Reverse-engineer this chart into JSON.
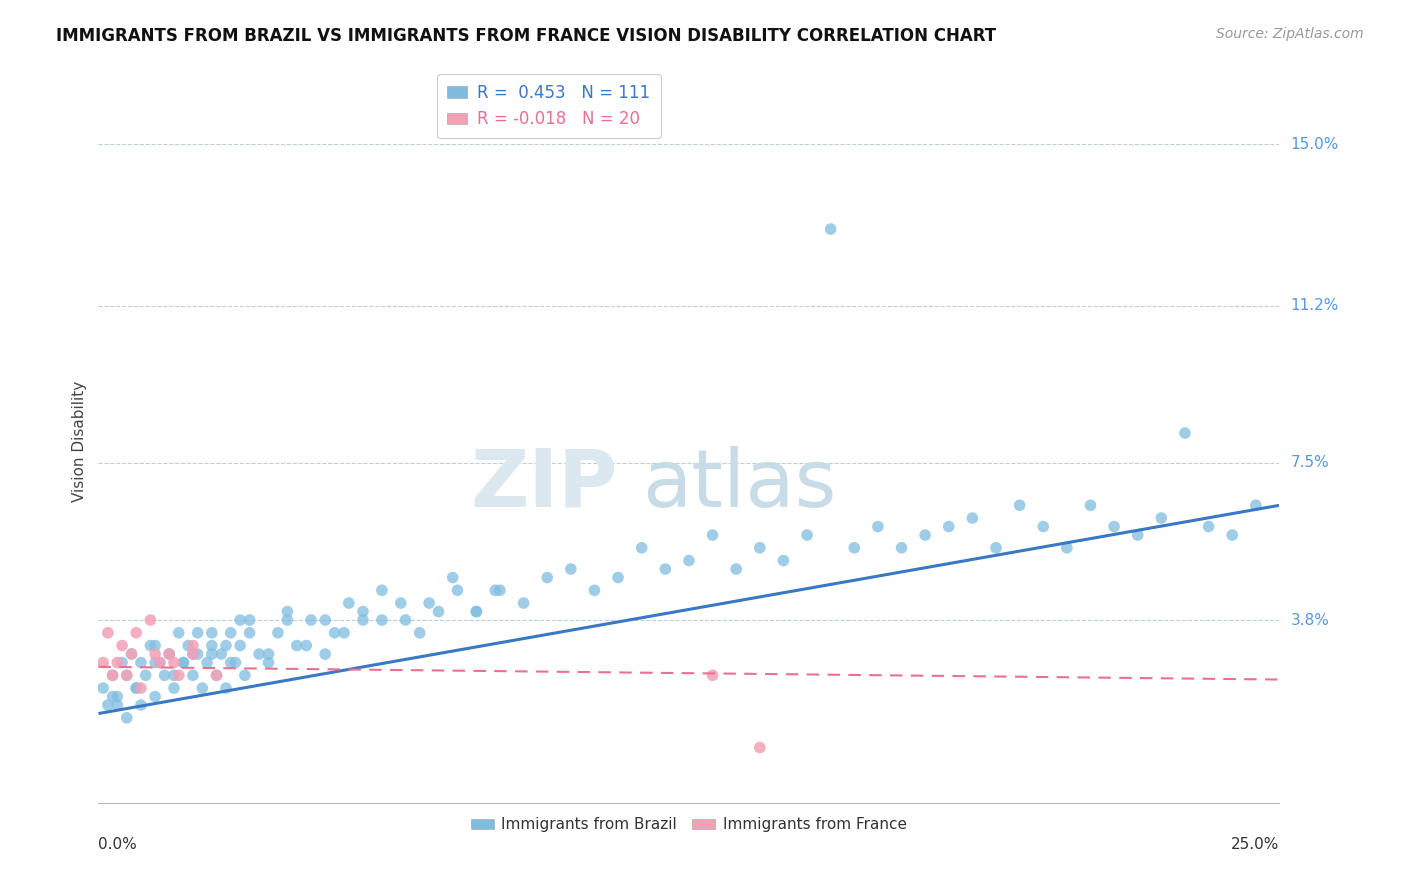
{
  "title": "IMMIGRANTS FROM BRAZIL VS IMMIGRANTS FROM FRANCE VISION DISABILITY CORRELATION CHART",
  "source": "Source: ZipAtlas.com",
  "ylabel": "Vision Disability",
  "xlim": [
    0.0,
    0.25
  ],
  "ylim": [
    -0.005,
    0.165
  ],
  "yticks": [
    0.038,
    0.075,
    0.112,
    0.15
  ],
  "ytick_labels": [
    "3.8%",
    "7.5%",
    "11.2%",
    "15.0%"
  ],
  "brazil_color": "#7fbde0",
  "france_color": "#f4a0b5",
  "brazil_line_color": "#3b78c3",
  "france_line_color": "#e87090",
  "brazil_r": 0.453,
  "brazil_n": 111,
  "france_r": -0.018,
  "france_n": 20,
  "watermark_zip": "ZIP",
  "watermark_atlas": "atlas",
  "brazil_line_x": [
    0.0,
    0.25
  ],
  "brazil_line_y": [
    0.016,
    0.065
  ],
  "france_line_x": [
    0.0,
    0.25
  ],
  "france_line_y": [
    0.027,
    0.024
  ],
  "brazil_scatter_x": [
    0.001,
    0.002,
    0.003,
    0.004,
    0.005,
    0.006,
    0.007,
    0.008,
    0.009,
    0.01,
    0.011,
    0.012,
    0.013,
    0.014,
    0.015,
    0.016,
    0.017,
    0.018,
    0.019,
    0.02,
    0.021,
    0.022,
    0.023,
    0.024,
    0.025,
    0.026,
    0.027,
    0.028,
    0.029,
    0.03,
    0.031,
    0.032,
    0.034,
    0.036,
    0.038,
    0.04,
    0.042,
    0.045,
    0.048,
    0.05,
    0.053,
    0.056,
    0.06,
    0.065,
    0.07,
    0.075,
    0.08,
    0.085,
    0.09,
    0.095,
    0.1,
    0.105,
    0.11,
    0.115,
    0.12,
    0.125,
    0.13,
    0.135,
    0.14,
    0.145,
    0.15,
    0.155,
    0.16,
    0.165,
    0.17,
    0.175,
    0.18,
    0.185,
    0.19,
    0.195,
    0.2,
    0.205,
    0.21,
    0.215,
    0.22,
    0.225,
    0.23,
    0.235,
    0.24,
    0.245,
    0.003,
    0.006,
    0.009,
    0.012,
    0.015,
    0.018,
    0.021,
    0.024,
    0.027,
    0.03,
    0.004,
    0.008,
    0.012,
    0.016,
    0.02,
    0.024,
    0.028,
    0.032,
    0.036,
    0.04,
    0.044,
    0.048,
    0.052,
    0.056,
    0.06,
    0.064,
    0.068,
    0.072,
    0.076,
    0.08,
    0.084
  ],
  "brazil_scatter_y": [
    0.022,
    0.018,
    0.025,
    0.02,
    0.028,
    0.015,
    0.03,
    0.022,
    0.018,
    0.025,
    0.032,
    0.02,
    0.028,
    0.025,
    0.03,
    0.022,
    0.035,
    0.028,
    0.032,
    0.025,
    0.03,
    0.022,
    0.028,
    0.035,
    0.025,
    0.03,
    0.022,
    0.035,
    0.028,
    0.032,
    0.025,
    0.038,
    0.03,
    0.028,
    0.035,
    0.04,
    0.032,
    0.038,
    0.03,
    0.035,
    0.042,
    0.038,
    0.045,
    0.038,
    0.042,
    0.048,
    0.04,
    0.045,
    0.042,
    0.048,
    0.05,
    0.045,
    0.048,
    0.055,
    0.05,
    0.052,
    0.058,
    0.05,
    0.055,
    0.052,
    0.058,
    0.13,
    0.055,
    0.06,
    0.055,
    0.058,
    0.06,
    0.062,
    0.055,
    0.065,
    0.06,
    0.055,
    0.065,
    0.06,
    0.058,
    0.062,
    0.082,
    0.06,
    0.058,
    0.065,
    0.02,
    0.025,
    0.028,
    0.032,
    0.03,
    0.028,
    0.035,
    0.03,
    0.032,
    0.038,
    0.018,
    0.022,
    0.028,
    0.025,
    0.03,
    0.032,
    0.028,
    0.035,
    0.03,
    0.038,
    0.032,
    0.038,
    0.035,
    0.04,
    0.038,
    0.042,
    0.035,
    0.04,
    0.045,
    0.04,
    0.045
  ],
  "france_scatter_x": [
    0.001,
    0.003,
    0.005,
    0.007,
    0.009,
    0.011,
    0.013,
    0.015,
    0.017,
    0.02,
    0.002,
    0.004,
    0.006,
    0.008,
    0.012,
    0.016,
    0.02,
    0.025,
    0.13,
    0.14
  ],
  "france_scatter_y": [
    0.028,
    0.025,
    0.032,
    0.03,
    0.022,
    0.038,
    0.028,
    0.03,
    0.025,
    0.032,
    0.035,
    0.028,
    0.025,
    0.035,
    0.03,
    0.028,
    0.03,
    0.025,
    0.025,
    0.008
  ]
}
